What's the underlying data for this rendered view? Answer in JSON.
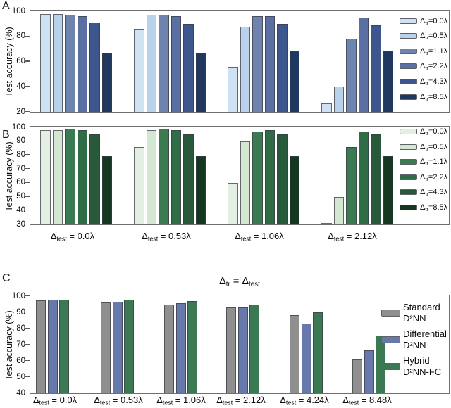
{
  "figure": {
    "panels": [
      {
        "label": "A"
      },
      {
        "label": "B"
      },
      {
        "label": "C"
      }
    ]
  },
  "chart_data": [
    {
      "type": "bar",
      "panel": "A",
      "ylabel": "Test accuracy (%)",
      "ylim": [
        20,
        100
      ],
      "yticks": [
        100,
        80,
        60,
        40,
        20
      ],
      "grid": false,
      "legend_position": "inside-top-right",
      "legend_label_template": {
        "pre": "Δ",
        "sub": "tr",
        "eq": "="
      },
      "categories": [],
      "n_groups": 4,
      "series": [
        {
          "name": "0.0λ",
          "color": "#cfe2f4",
          "values": [
            98,
            86,
            56,
            27
          ]
        },
        {
          "name": "0.5λ",
          "color": "#b9d2ec",
          "values": [
            98,
            97,
            88,
            40
          ]
        },
        {
          "name": "1.1λ",
          "color": "#6e84ae",
          "values": [
            97,
            97,
            96,
            78
          ]
        },
        {
          "name": "2.2λ",
          "color": "#5a70a2",
          "values": [
            96,
            96,
            96,
            95
          ]
        },
        {
          "name": "4.3λ",
          "color": "#3e568e",
          "values": [
            91,
            90,
            90,
            89
          ]
        },
        {
          "name": "8.5λ",
          "color": "#203760",
          "values": [
            67,
            67,
            68,
            68
          ]
        }
      ]
    },
    {
      "type": "bar",
      "panel": "B",
      "ylabel": "Test accuracy (%)",
      "ylim": [
        30,
        100
      ],
      "yticks": [
        100,
        90,
        80,
        70,
        60,
        50,
        40,
        30
      ],
      "grid": false,
      "legend_position": "inside-top-right",
      "legend_label_template": {
        "pre": "Δ",
        "sub": "tr",
        "eq": "="
      },
      "category_label_template": {
        "pre": "Δ",
        "sub": "test",
        "eq": " = "
      },
      "categories": [
        "0.0λ",
        "0.53λ",
        "1.06λ",
        "2.12λ"
      ],
      "series": [
        {
          "name": "0.0λ",
          "color": "#e3efe3",
          "values": [
            98,
            86,
            60,
            31
          ]
        },
        {
          "name": "0.5λ",
          "color": "#d3e7d3",
          "values": [
            98,
            98,
            90,
            50
          ]
        },
        {
          "name": "1.1λ",
          "color": "#3b7b52",
          "values": [
            99,
            99,
            97,
            86
          ]
        },
        {
          "name": "2.2λ",
          "color": "#2f6d47",
          "values": [
            98,
            98,
            98,
            97
          ]
        },
        {
          "name": "4.3λ",
          "color": "#27593a",
          "values": [
            95,
            95,
            95,
            95
          ]
        },
        {
          "name": "8.5λ",
          "color": "#153620",
          "values": [
            79,
            79,
            79,
            79
          ]
        }
      ]
    },
    {
      "type": "bar",
      "panel": "C",
      "title_parts": [
        {
          "t": "Δ"
        },
        {
          "s": "tr"
        },
        {
          "t": " = Δ"
        },
        {
          "s": "test"
        }
      ],
      "ylabel": "Test accuracy (%)",
      "ylim": [
        40,
        100
      ],
      "yticks": [
        100,
        90,
        80,
        70,
        60,
        50,
        40
      ],
      "grid": false,
      "legend_position": "inside-right",
      "category_label_template": {
        "pre": "Δ",
        "sub": "test",
        "eq": " = "
      },
      "categories": [
        "0.0λ",
        "0.53λ",
        "1.06λ",
        "2.12λ",
        "4.24λ",
        "8.48λ"
      ],
      "series": [
        {
          "name_lines": [
            "Standard",
            "D²NN"
          ],
          "color": "#8f8f8f",
          "values": [
            97.5,
            96,
            95,
            93,
            88.5,
            61
          ]
        },
        {
          "name_lines": [
            "Differential",
            "D²NN"
          ],
          "color": "#6679aa",
          "values": [
            98,
            96.5,
            95.5,
            93,
            83,
            66.5
          ]
        },
        {
          "name_lines": [
            "Hybrid",
            "D²NN-FC"
          ],
          "color": "#3a7951",
          "values": [
            98,
            98,
            97,
            95,
            90,
            75.5
          ]
        }
      ]
    }
  ]
}
